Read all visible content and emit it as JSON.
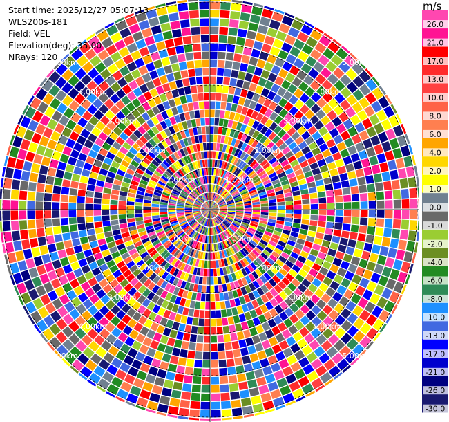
{
  "header": {
    "start_time": "Start time: 2025/12/27 05:07:13",
    "instrument": "WLS200s-181",
    "field": "Field: VEL",
    "elevation": "Elevation(deg): 35.00",
    "nrays": "NRays: 120"
  },
  "chart_data": {
    "type": "heatmap",
    "projection": "polar-ppi",
    "field": "VEL",
    "nrays": 120,
    "range_rings_km": [
      1,
      2,
      3,
      4,
      5
    ],
    "ring_labels": [
      "1.00km",
      "2.00km",
      "3.00km",
      "4.00km",
      "5.00km"
    ],
    "colorbar": {
      "unit": "m/s",
      "ticks": [
        "26.0",
        "21.0",
        "17.0",
        "13.0",
        "10.0",
        "8.0",
        "6.0",
        "4.0",
        "2.0",
        "1.0",
        "0.0",
        "-1.0",
        "-2.0",
        "-4.0",
        "-6.0",
        "-8.0",
        "-10.0",
        "-13.0",
        "-17.0",
        "-21.0",
        "-26.0",
        "-30.0"
      ],
      "colors": [
        "#ff47b0",
        "#ff1493",
        "#ff0000",
        "#ff2b2b",
        "#ff4040",
        "#ff6347",
        "#ff7f50",
        "#ffa500",
        "#ffd700",
        "#ffff00",
        "#708090",
        "#696969",
        "#9acd32",
        "#6b8e23",
        "#228b22",
        "#2e8b57",
        "#1e90ff",
        "#4169e1",
        "#0000ff",
        "#0000cd",
        "#000080",
        "#191970"
      ]
    }
  }
}
